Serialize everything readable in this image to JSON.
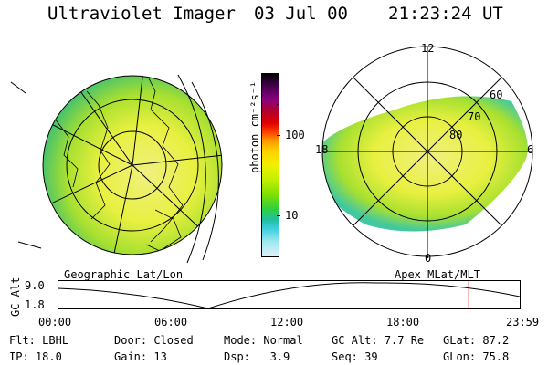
{
  "header": {
    "instrument": "Ultraviolet Imager",
    "date": "03 Jul 00",
    "time": "21:23:24 UT"
  },
  "colorbar": {
    "label": "photon cm⁻²s⁻¹",
    "ticks": [
      "100",
      "10"
    ],
    "colors": [
      "#000000",
      "#2a0030",
      "#5a0060",
      "#8a0080",
      "#b00030",
      "#e00000",
      "#ff4000",
      "#ff9000",
      "#ffd000",
      "#f0f000",
      "#c0f000",
      "#80e000",
      "#30d040",
      "#20c0a0",
      "#40d0e0",
      "#a0e8f0",
      "#e0f0f8"
    ]
  },
  "geo_panel": {
    "label": "Geographic Lat/Lon"
  },
  "polar_panel": {
    "label": "Apex MLat/MLT",
    "hour_labels": {
      "top": "12",
      "bottom": "0",
      "left": "18",
      "right": "6"
    },
    "lat_labels": [
      "60",
      "70",
      "80"
    ]
  },
  "altitude_plot": {
    "y_label": "GC Alt",
    "y_ticks": [
      "9.0",
      "1.8"
    ],
    "x_ticks": [
      "00:00",
      "06:00",
      "12:00",
      "18:00",
      "23:59"
    ],
    "current_time_fraction": 0.89,
    "marker_color": "#e00000"
  },
  "info": {
    "flt_label": "Flt:",
    "flt_value": "LBHL",
    "ip_label": "IP:",
    "ip_value": "18.0",
    "door_label": "Door:",
    "door_value": "Closed",
    "gain_label": "Gain:",
    "gain_value": "13",
    "mode_label": "Mode:",
    "mode_value": "Normal",
    "dsp_label": "Dsp:",
    "dsp_value": "3.9",
    "gcalt_label": "GC Alt:",
    "gcalt_value": "7.7 Re",
    "seq_label": "Seq:",
    "seq_value": "39",
    "glat_label": "GLat:",
    "glat_value": "87.2",
    "glon_label": "GLon:",
    "glon_value": "75.8"
  }
}
